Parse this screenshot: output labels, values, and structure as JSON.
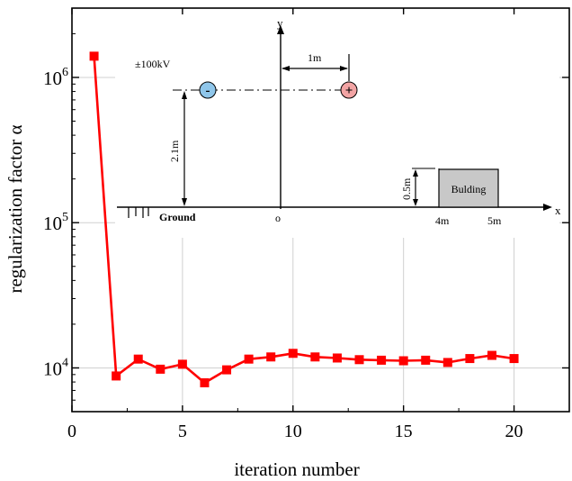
{
  "chart_data": {
    "type": "line",
    "xlabel": "iteration number",
    "ylabel": "regularization factor α",
    "yscale": "log",
    "xlim": [
      0,
      22.5
    ],
    "ylim": [
      5000,
      3000000
    ],
    "grid": true,
    "x_ticks": [
      0,
      5,
      10,
      15,
      20
    ],
    "x_tick_labels": [
      "0",
      "5",
      "10",
      "15",
      "20"
    ],
    "y_ticks": [
      10000,
      100000,
      1000000
    ],
    "y_tick_labels": [
      {
        "base": "10",
        "exp": "4"
      },
      {
        "base": "10",
        "exp": "5"
      },
      {
        "base": "10",
        "exp": "6"
      }
    ],
    "color": "#ff0000",
    "series": [
      {
        "x": [
          1,
          2,
          3,
          4,
          5,
          6,
          7,
          8,
          9,
          10,
          11,
          12,
          13,
          14,
          15,
          16,
          17,
          18,
          19,
          20
        ],
        "values": [
          1400000,
          8800,
          11500,
          9800,
          10600,
          7900,
          9700,
          11500,
          11900,
          12600,
          11900,
          11700,
          11400,
          11300,
          11200,
          11300,
          10900,
          11600,
          12200,
          11600
        ]
      }
    ],
    "inset": {
      "voltage": "±100kV",
      "height": "2.1m",
      "spacing": "1m",
      "origin": "o",
      "x_axis": "x",
      "y_axis": "y",
      "ground": "Ground",
      "building": "Bulding",
      "building_height": "0.5m",
      "x_4m": "4m",
      "x_5m": "5m",
      "minus": "-",
      "plus": "+"
    }
  }
}
